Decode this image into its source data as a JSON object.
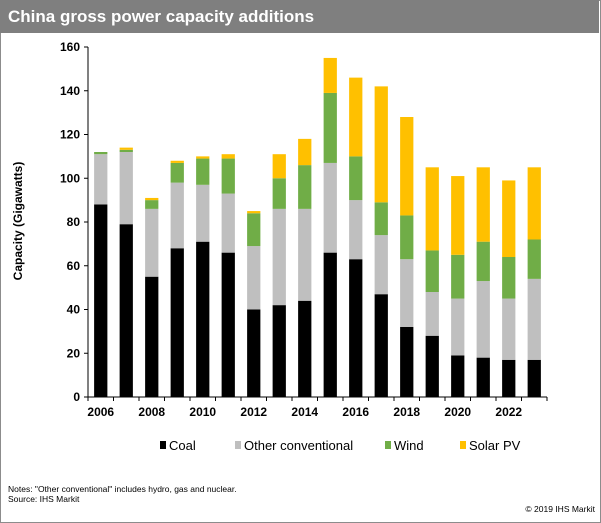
{
  "header": {
    "title": "China gross power capacity additions"
  },
  "footer": {
    "note": "Notes: \"Other conventional\" includes hydro, gas and nuclear.",
    "source": "Source: IHS Markit",
    "credit": "© 2019 IHS Markit"
  },
  "chart_data": {
    "type": "bar",
    "stacked": true,
    "title": "China gross power capacity additions",
    "xlabel": "",
    "ylabel": "Capacity (Gigawatts)",
    "ylim": [
      0,
      160
    ],
    "yticks": [
      0,
      20,
      40,
      60,
      80,
      100,
      120,
      140,
      160
    ],
    "categories": [
      2006,
      2007,
      2008,
      2009,
      2010,
      2011,
      2012,
      2013,
      2014,
      2015,
      2016,
      2017,
      2018,
      2019,
      2020,
      2021,
      2022,
      2023
    ],
    "xticklabels": [
      "2006",
      "2008",
      "2010",
      "2012",
      "2014",
      "2016",
      "2018",
      "2020",
      "2022"
    ],
    "grid": false,
    "legend_position": "bottom",
    "series": [
      {
        "name": "Coal",
        "color": "#000000",
        "values": [
          88,
          79,
          55,
          68,
          71,
          66,
          40,
          42,
          44,
          66,
          63,
          47,
          32,
          28,
          19,
          18,
          17,
          17
        ]
      },
      {
        "name": "Other conventional",
        "color": "#bfbfbf",
        "values": [
          23,
          33,
          31,
          30,
          26,
          27,
          29,
          44,
          42,
          41,
          27,
          27,
          31,
          20,
          26,
          35,
          28,
          37
        ]
      },
      {
        "name": "Wind",
        "color": "#70ad47",
        "values": [
          1,
          1,
          4,
          9,
          12,
          16,
          15,
          14,
          20,
          32,
          20,
          15,
          20,
          19,
          20,
          18,
          19,
          18
        ]
      },
      {
        "name": "Solar PV",
        "color": "#ffc000",
        "values": [
          0,
          1,
          1,
          1,
          1,
          2,
          1,
          11,
          12,
          16,
          36,
          53,
          45,
          38,
          36,
          34,
          35,
          33
        ]
      }
    ]
  }
}
